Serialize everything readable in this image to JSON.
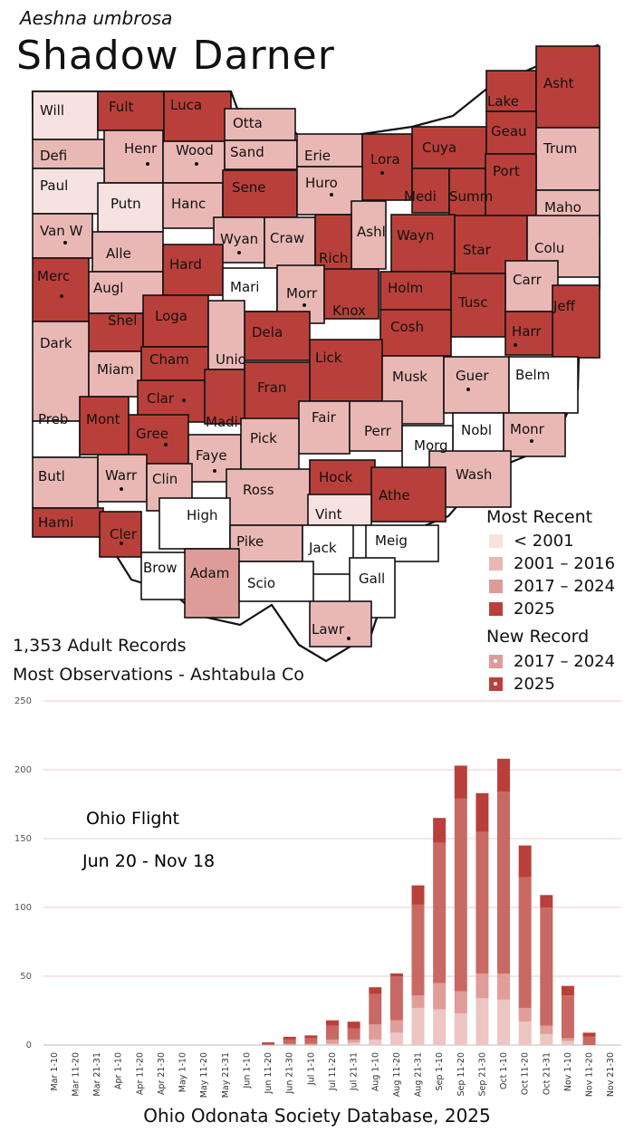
{
  "species": {
    "scientific": "Aeshna umbrosa",
    "common": "Shadow Darner"
  },
  "colors": {
    "lt2001": "#f6e2e0",
    "c2001_2016": "#e9b8b5",
    "c2017_2024": "#dd9c98",
    "c2025": "#b9403a"
  },
  "counties": [
    {
      "name": "Will",
      "cat": "lt2001",
      "nr": ""
    },
    {
      "name": "Fult",
      "cat": "c2025",
      "nr": ""
    },
    {
      "name": "Luca",
      "cat": "c2025",
      "nr": ""
    },
    {
      "name": "Otta",
      "cat": "c2001_2016",
      "nr": ""
    },
    {
      "name": "Lake",
      "cat": "c2025",
      "nr": ""
    },
    {
      "name": "Asht",
      "cat": "c2025",
      "nr": ""
    },
    {
      "name": "Defi",
      "cat": "c2001_2016",
      "nr": ""
    },
    {
      "name": "Henr",
      "cat": "c2001_2016",
      "nr": "2017_2024"
    },
    {
      "name": "Wood",
      "cat": "c2001_2016",
      "nr": "2017_2024"
    },
    {
      "name": "Sand",
      "cat": "c2001_2016",
      "nr": ""
    },
    {
      "name": "Erie",
      "cat": "c2001_2016",
      "nr": ""
    },
    {
      "name": "Lora",
      "cat": "c2025",
      "nr": "2025"
    },
    {
      "name": "Cuya",
      "cat": "c2025",
      "nr": ""
    },
    {
      "name": "Geau",
      "cat": "c2025",
      "nr": ""
    },
    {
      "name": "Trum",
      "cat": "c2001_2016",
      "nr": ""
    },
    {
      "name": "Paul",
      "cat": "lt2001",
      "nr": ""
    },
    {
      "name": "Putn",
      "cat": "lt2001",
      "nr": ""
    },
    {
      "name": "Hanc",
      "cat": "c2001_2016",
      "nr": ""
    },
    {
      "name": "Sene",
      "cat": "c2025",
      "nr": ""
    },
    {
      "name": "Huro",
      "cat": "c2001_2016",
      "nr": "2017_2024"
    },
    {
      "name": "Medi",
      "cat": "c2025",
      "nr": ""
    },
    {
      "name": "Summ",
      "cat": "c2025",
      "nr": ""
    },
    {
      "name": "Port",
      "cat": "c2025",
      "nr": ""
    },
    {
      "name": "Maho",
      "cat": "c2001_2016",
      "nr": ""
    },
    {
      "name": "Van W",
      "cat": "c2001_2016",
      "nr": "2017_2024"
    },
    {
      "name": "Alle",
      "cat": "c2001_2016",
      "nr": ""
    },
    {
      "name": "Wyan",
      "cat": "c2001_2016",
      "nr": "2017_2024"
    },
    {
      "name": "Craw",
      "cat": "c2001_2016",
      "nr": ""
    },
    {
      "name": "Ashl",
      "cat": "c2001_2016",
      "nr": ""
    },
    {
      "name": "Rich",
      "cat": "c2025",
      "nr": ""
    },
    {
      "name": "Wayn",
      "cat": "c2025",
      "nr": ""
    },
    {
      "name": "Star",
      "cat": "c2025",
      "nr": ""
    },
    {
      "name": "Colu",
      "cat": "c2001_2016",
      "nr": ""
    },
    {
      "name": "Merc",
      "cat": "c2025",
      "nr": "2025"
    },
    {
      "name": "Augl",
      "cat": "c2001_2016",
      "nr": ""
    },
    {
      "name": "Hard",
      "cat": "c2025",
      "nr": ""
    },
    {
      "name": "Mari",
      "cat": "none",
      "nr": ""
    },
    {
      "name": "Morr",
      "cat": "c2001_2016",
      "nr": "2017_2024"
    },
    {
      "name": "Knox",
      "cat": "c2025",
      "nr": ""
    },
    {
      "name": "Holm",
      "cat": "c2025",
      "nr": ""
    },
    {
      "name": "Carr",
      "cat": "c2001_2016",
      "nr": ""
    },
    {
      "name": "Tusc",
      "cat": "c2025",
      "nr": ""
    },
    {
      "name": "Jeff",
      "cat": "c2025",
      "nr": ""
    },
    {
      "name": "Shel",
      "cat": "c2025",
      "nr": ""
    },
    {
      "name": "Loga",
      "cat": "c2025",
      "nr": ""
    },
    {
      "name": "Dela",
      "cat": "c2025",
      "nr": ""
    },
    {
      "name": "Cosh",
      "cat": "c2025",
      "nr": ""
    },
    {
      "name": "Harr",
      "cat": "c2025",
      "nr": "2025"
    },
    {
      "name": "Dark",
      "cat": "c2001_2016",
      "nr": ""
    },
    {
      "name": "Miam",
      "cat": "c2001_2016",
      "nr": ""
    },
    {
      "name": "Cham",
      "cat": "c2025",
      "nr": ""
    },
    {
      "name": "Unio",
      "cat": "c2001_2016",
      "nr": ""
    },
    {
      "name": "Lick",
      "cat": "c2025",
      "nr": ""
    },
    {
      "name": "Musk",
      "cat": "c2001_2016",
      "nr": ""
    },
    {
      "name": "Guer",
      "cat": "c2001_2016",
      "nr": "2017_2024"
    },
    {
      "name": "Belm",
      "cat": "none",
      "nr": ""
    },
    {
      "name": "Clar",
      "cat": "c2025",
      "nr": "2025"
    },
    {
      "name": "Fran",
      "cat": "c2025",
      "nr": ""
    },
    {
      "name": "Madi",
      "cat": "c2025",
      "nr": ""
    },
    {
      "name": "Fair",
      "cat": "c2001_2016",
      "nr": ""
    },
    {
      "name": "Perr",
      "cat": "c2001_2016",
      "nr": ""
    },
    {
      "name": "Nobl",
      "cat": "none",
      "nr": ""
    },
    {
      "name": "Monr",
      "cat": "c2001_2016",
      "nr": "2017_2024"
    },
    {
      "name": "Preb",
      "cat": "none",
      "nr": ""
    },
    {
      "name": "Mont",
      "cat": "c2025",
      "nr": ""
    },
    {
      "name": "Gree",
      "cat": "c2025",
      "nr": "2025"
    },
    {
      "name": "Faye",
      "cat": "c2001_2016",
      "nr": "2017_2024"
    },
    {
      "name": "Pick",
      "cat": "c2001_2016",
      "nr": ""
    },
    {
      "name": "Morg",
      "cat": "none",
      "nr": ""
    },
    {
      "name": "Wash",
      "cat": "c2001_2016",
      "nr": ""
    },
    {
      "name": "Butl",
      "cat": "c2001_2016",
      "nr": ""
    },
    {
      "name": "Warr",
      "cat": "c2001_2016",
      "nr": "2017_2024"
    },
    {
      "name": "Clin",
      "cat": "c2001_2016",
      "nr": ""
    },
    {
      "name": "Ross",
      "cat": "c2001_2016",
      "nr": ""
    },
    {
      "name": "Hock",
      "cat": "c2025",
      "nr": ""
    },
    {
      "name": "Athe",
      "cat": "c2025",
      "nr": ""
    },
    {
      "name": "Hami",
      "cat": "c2025",
      "nr": ""
    },
    {
      "name": "Cler",
      "cat": "c2025",
      "nr": "2025"
    },
    {
      "name": "High",
      "cat": "none",
      "nr": ""
    },
    {
      "name": "Vint",
      "cat": "lt2001",
      "nr": ""
    },
    {
      "name": "Pike",
      "cat": "c2001_2016",
      "nr": ""
    },
    {
      "name": "Jack",
      "cat": "none",
      "nr": ""
    },
    {
      "name": "Meig",
      "cat": "none",
      "nr": ""
    },
    {
      "name": "Brow",
      "cat": "none",
      "nr": ""
    },
    {
      "name": "Adam",
      "cat": "c2017_2024",
      "nr": ""
    },
    {
      "name": "Scio",
      "cat": "none",
      "nr": ""
    },
    {
      "name": "Gall",
      "cat": "none",
      "nr": ""
    },
    {
      "name": "Lawr",
      "cat": "c2001_2016",
      "nr": "2017_2024"
    }
  ],
  "legend": {
    "title": "Most Recent",
    "items": [
      {
        "label": "< 2001",
        "color": "#f6e2e0"
      },
      {
        "label": "2001 – 2016",
        "color": "#e9b8b5"
      },
      {
        "label": "2017 – 2024",
        "color": "#dd9c98"
      },
      {
        "label": "2025",
        "color": "#b9403a"
      }
    ],
    "new_record_title": "New Record",
    "new_record_items": [
      {
        "label": "2017 – 2024",
        "color": "#dd9c98"
      },
      {
        "label": "2025",
        "color": "#b9403a"
      }
    ]
  },
  "stats": {
    "records": "1,353 Adult Records",
    "most_obs": "Most Observations - Ashtabula Co"
  },
  "flight": {
    "title": "Ohio Flight",
    "range": "Jun 20 - Nov 18"
  },
  "source": "Ohio Odonata Society Database, 2025",
  "chart_data": {
    "type": "bar",
    "stacked": true,
    "title": "Ohio Flight",
    "ylim": [
      0,
      250
    ],
    "yticks": [
      0,
      50,
      100,
      150,
      200,
      250
    ],
    "categories": [
      "Mar 1-10",
      "Mar 11-20",
      "Mar 21-31",
      "Apr 1-10",
      "Apr 11-20",
      "Apr 21-30",
      "May 1-10",
      "May 11-20",
      "May 21-31",
      "Jun 1-10",
      "Jun 11-20",
      "Jun 21-30",
      "Jul 1-10",
      "Jul 11-20",
      "Jul 21-31",
      "Aug 1-10",
      "Aug 11-20",
      "Aug 21-31",
      "Sep 1-10",
      "Sep 11-20",
      "Sep 21-30",
      "Oct 1-10",
      "Oct 11-20",
      "Oct 21-31",
      "Nov 1-10",
      "Nov 11-20",
      "Nov 21-30"
    ],
    "series": [
      {
        "name": "< 2001",
        "color": "#edc5c2",
        "values": [
          0,
          0,
          0,
          0,
          0,
          0,
          0,
          0,
          0,
          0,
          0,
          0,
          0,
          1,
          2,
          4,
          9,
          27,
          26,
          23,
          34,
          33,
          17,
          8,
          3,
          0,
          0
        ]
      },
      {
        "name": "2001 – 2016",
        "color": "#e09d99",
        "values": [
          0,
          0,
          0,
          0,
          0,
          0,
          0,
          0,
          0,
          0,
          0,
          1,
          1,
          3,
          2,
          11,
          9,
          9,
          19,
          16,
          18,
          19,
          10,
          6,
          2,
          0,
          0
        ]
      },
      {
        "name": "2017 – 2024",
        "color": "#c86964",
        "values": [
          0,
          0,
          0,
          0,
          0,
          0,
          0,
          0,
          0,
          0,
          1,
          3,
          4,
          10,
          8,
          22,
          32,
          66,
          102,
          140,
          103,
          132,
          95,
          86,
          31,
          6,
          0
        ]
      },
      {
        "name": "2025",
        "color": "#b9403a",
        "values": [
          0,
          0,
          0,
          0,
          0,
          0,
          0,
          0,
          0,
          0,
          1,
          2,
          2,
          4,
          5,
          5,
          2,
          14,
          18,
          24,
          28,
          24,
          23,
          9,
          7,
          3,
          0
        ]
      }
    ]
  }
}
